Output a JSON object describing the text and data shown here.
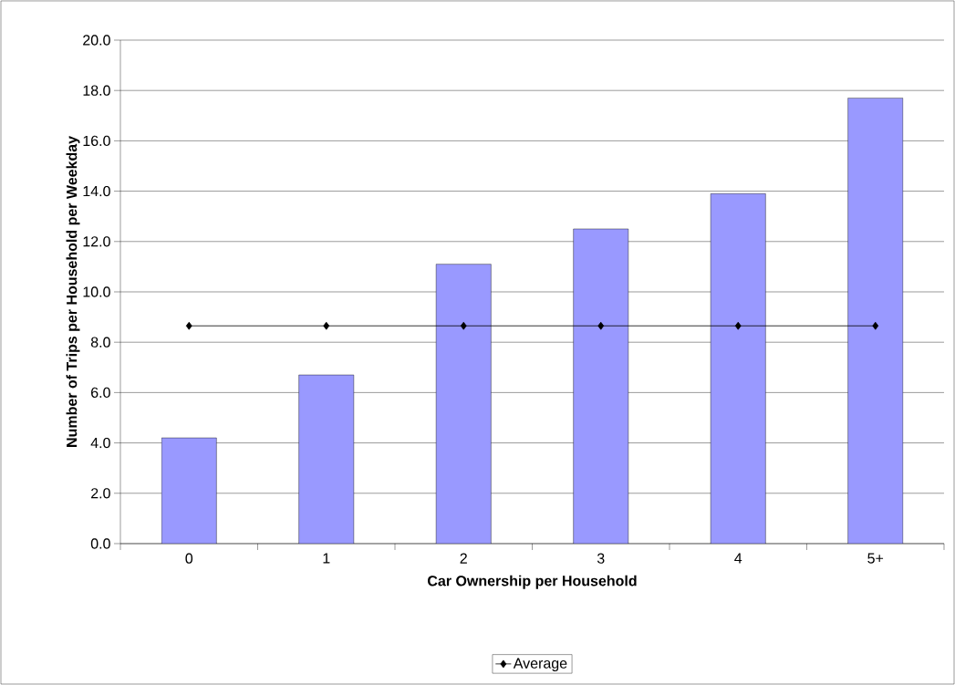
{
  "chart_data": {
    "type": "bar",
    "xlabel": "Car Ownership per Household",
    "ylabel": "Number of Trips per Household per Weekday",
    "categories": [
      "0",
      "1",
      "2",
      "3",
      "4",
      "5+"
    ],
    "ylim": [
      0,
      20
    ],
    "yticks": [
      {
        "value": 0,
        "label": "0.0"
      },
      {
        "value": 2,
        "label": "2.0"
      },
      {
        "value": 4,
        "label": "4.0"
      },
      {
        "value": 6,
        "label": "6.0"
      },
      {
        "value": 8,
        "label": "8.0"
      },
      {
        "value": 10,
        "label": "10.0"
      },
      {
        "value": 12,
        "label": "12.0"
      },
      {
        "value": 14,
        "label": "14.0"
      },
      {
        "value": 16,
        "label": "16.0"
      },
      {
        "value": 18,
        "label": "18.0"
      },
      {
        "value": 20,
        "label": "20.0"
      }
    ],
    "grid": "y",
    "legend": "bottom",
    "series": [
      {
        "color": "#9999ff",
        "values": [
          4.2,
          6.7,
          11.1,
          12.5,
          13.9,
          17.7
        ]
      },
      {
        "name": "Average",
        "type": "line",
        "color": "#000000",
        "marker": "diamond",
        "values": [
          8.65,
          8.65,
          8.65,
          8.65,
          8.65,
          8.65
        ]
      }
    ]
  }
}
